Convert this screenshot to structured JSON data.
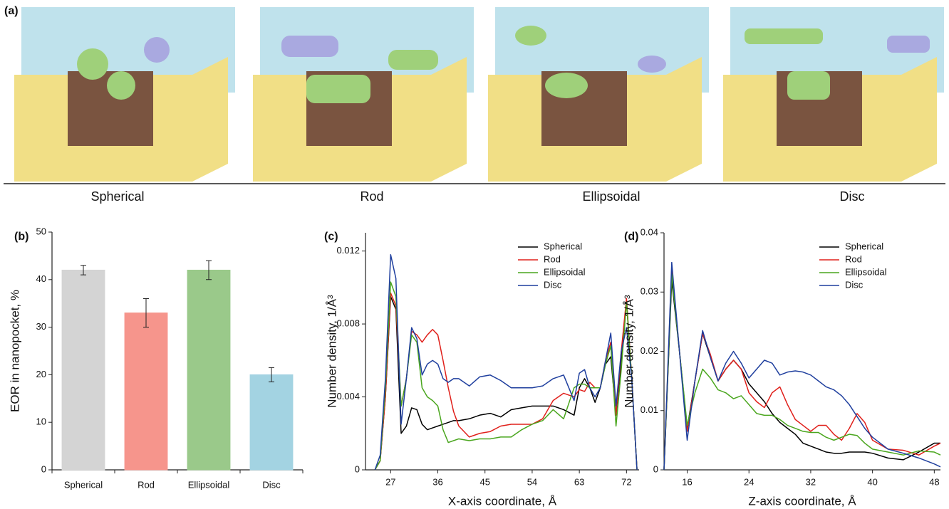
{
  "panel_a": {
    "label": "(a)",
    "captions": [
      "Spherical",
      "Rod",
      "Ellipsoidal",
      "Disc"
    ]
  },
  "chart_data": [
    {
      "type": "bar",
      "panel_label": "(b)",
      "ylabel": "EOR in nanopocket, %",
      "categories": [
        "Spherical",
        "Rod",
        "Ellipsoidal",
        "Disc"
      ],
      "values": [
        42,
        33,
        42,
        20
      ],
      "errors": [
        1,
        3,
        2,
        1.5
      ],
      "colors": [
        "#d4d4d4",
        "#f6958c",
        "#9ac98a",
        "#a3d3e2"
      ],
      "ylim": [
        0,
        50
      ],
      "yticks": [
        0,
        10,
        20,
        30,
        40,
        50
      ]
    },
    {
      "type": "line",
      "panel_label": "(c)",
      "xlabel": "X-axis coordinate, Å",
      "ylabel": "Number density, 1/Å³",
      "x": [
        24,
        25,
        26,
        27,
        28,
        29,
        30,
        31,
        32,
        33,
        34,
        35,
        36,
        37,
        38,
        39,
        40,
        42,
        44,
        46,
        48,
        50,
        52,
        54,
        56,
        58,
        60,
        62,
        63,
        64,
        65,
        66,
        67,
        68,
        69,
        70,
        71,
        72,
        73,
        74
      ],
      "series": [
        {
          "name": "Spherical",
          "color": "#000000",
          "values": [
            0,
            0.0005,
            0.004,
            0.0095,
            0.0088,
            0.002,
            0.0024,
            0.0034,
            0.0033,
            0.0025,
            0.0022,
            0.0023,
            0.0024,
            0.0025,
            0.0026,
            0.0027,
            0.0027,
            0.0028,
            0.003,
            0.0031,
            0.0029,
            0.0033,
            0.0034,
            0.0035,
            0.0035,
            0.0035,
            0.0033,
            0.003,
            0.0045,
            0.005,
            0.0045,
            0.0037,
            0.0045,
            0.0058,
            0.0062,
            0.003,
            0.006,
            0.0093,
            0.005,
            0
          ]
        },
        {
          "name": "Rod",
          "color": "#e0201b",
          "values": [
            0,
            0.0005,
            0.004,
            0.0097,
            0.009,
            0.0035,
            0.005,
            0.0076,
            0.0074,
            0.007,
            0.0074,
            0.0077,
            0.0074,
            0.006,
            0.0045,
            0.0032,
            0.0024,
            0.0018,
            0.002,
            0.0021,
            0.0024,
            0.0025,
            0.0025,
            0.0025,
            0.0028,
            0.0038,
            0.0042,
            0.004,
            0.0044,
            0.0043,
            0.0048,
            0.0045,
            0.0045,
            0.006,
            0.007,
            0.003,
            0.0065,
            0.0094,
            0.005,
            0
          ]
        },
        {
          "name": "Ellipsoidal",
          "color": "#4aa61e",
          "values": [
            0,
            0.0005,
            0.0045,
            0.0103,
            0.0095,
            0.0035,
            0.005,
            0.0074,
            0.007,
            0.0045,
            0.004,
            0.0038,
            0.0035,
            0.0022,
            0.0015,
            0.0016,
            0.0017,
            0.0016,
            0.0017,
            0.0017,
            0.0018,
            0.0018,
            0.0022,
            0.0025,
            0.0027,
            0.0033,
            0.0028,
            0.0045,
            0.0047,
            0.0047,
            0.0045,
            0.0045,
            0.0045,
            0.0058,
            0.0068,
            0.0024,
            0.0055,
            0.0092,
            0.005,
            0
          ]
        },
        {
          "name": "Disc",
          "color": "#1f3f9e",
          "values": [
            0,
            0.0008,
            0.005,
            0.0118,
            0.0105,
            0.0025,
            0.005,
            0.0078,
            0.0072,
            0.0052,
            0.0058,
            0.006,
            0.0058,
            0.005,
            0.0048,
            0.005,
            0.005,
            0.0046,
            0.0051,
            0.0052,
            0.0049,
            0.0045,
            0.0045,
            0.0045,
            0.0046,
            0.005,
            0.0052,
            0.0038,
            0.0053,
            0.0055,
            0.0045,
            0.004,
            0.0045,
            0.006,
            0.0075,
            0.0035,
            0.0065,
            0.0078,
            0.005,
            0
          ]
        }
      ],
      "xlim": [
        22.2,
        74.4
      ],
      "xticks": [
        27,
        36,
        45,
        54,
        63,
        72
      ],
      "ylim": [
        0,
        0.013
      ],
      "yticks": [
        0,
        0.004,
        0.008,
        0.012
      ],
      "legend": "upper right"
    },
    {
      "type": "line",
      "panel_label": "(d)",
      "xlabel": "Z-axis coordinate, Å",
      "ylabel": "Number density, 1/Å³",
      "x": [
        13,
        14,
        15,
        16,
        17,
        18,
        19,
        20,
        21,
        22,
        23,
        24,
        25,
        26,
        27,
        28,
        29,
        30,
        31,
        32,
        33,
        34,
        35,
        36,
        37,
        38,
        39,
        40,
        42,
        44,
        46,
        48,
        48.8
      ],
      "series": [
        {
          "name": "Spherical",
          "color": "#000000",
          "values": [
            0,
            0.032,
            0.02,
            0.007,
            0.015,
            0.023,
            0.019,
            0.015,
            0.017,
            0.0185,
            0.017,
            0.0145,
            0.013,
            0.0115,
            0.0095,
            0.008,
            0.007,
            0.006,
            0.0045,
            0.004,
            0.0035,
            0.003,
            0.0028,
            0.0028,
            0.003,
            0.003,
            0.003,
            0.0028,
            0.002,
            0.0017,
            0.003,
            0.0045,
            0.0045
          ]
        },
        {
          "name": "Rod",
          "color": "#e0201b",
          "values": [
            0,
            0.034,
            0.02,
            0.0065,
            0.015,
            0.023,
            0.0195,
            0.015,
            0.017,
            0.0185,
            0.017,
            0.013,
            0.0115,
            0.0105,
            0.013,
            0.014,
            0.011,
            0.0085,
            0.0075,
            0.0065,
            0.0075,
            0.0075,
            0.006,
            0.005,
            0.007,
            0.0095,
            0.008,
            0.005,
            0.0035,
            0.0033,
            0.0025,
            0.004,
            0.0045
          ]
        },
        {
          "name": "Ellipsoidal",
          "color": "#4aa61e",
          "values": [
            0,
            0.033,
            0.02,
            0.0075,
            0.013,
            0.017,
            0.0155,
            0.0135,
            0.013,
            0.012,
            0.0125,
            0.011,
            0.0095,
            0.0092,
            0.0092,
            0.0085,
            0.0075,
            0.007,
            0.0065,
            0.0063,
            0.0063,
            0.0055,
            0.005,
            0.0055,
            0.006,
            0.0058,
            0.0045,
            0.0035,
            0.003,
            0.0025,
            0.0032,
            0.003,
            0.0025
          ]
        },
        {
          "name": "Disc",
          "color": "#1f3f9e",
          "values": [
            0,
            0.035,
            0.02,
            0.005,
            0.015,
            0.0235,
            0.019,
            0.015,
            0.018,
            0.02,
            0.018,
            0.0155,
            0.017,
            0.0185,
            0.018,
            0.016,
            0.0165,
            0.0167,
            0.0165,
            0.016,
            0.015,
            0.014,
            0.0135,
            0.0125,
            0.011,
            0.009,
            0.007,
            0.0055,
            0.0035,
            0.0028,
            0.002,
            0.001,
            0.0005
          ]
        }
      ],
      "xlim": [
        13,
        48.8
      ],
      "xticks": [
        16,
        24,
        32,
        40,
        48
      ],
      "ylim": [
        0,
        0.04
      ],
      "yticks": [
        0,
        0.01,
        0.02,
        0.03,
        0.04
      ],
      "legend": "upper right"
    }
  ]
}
